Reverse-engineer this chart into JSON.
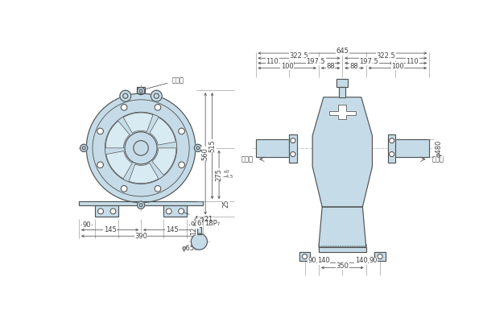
{
  "bg_color": "#ffffff",
  "line_color": "#505050",
  "dim_color": "#404040",
  "fill_color": "#c5dce8",
  "fill_color_light": "#d8eaf2",
  "font_size": 6,
  "lw_main": 0.8,
  "lw_dim": 0.5,
  "notes": {
    "terminal_label": "端子台",
    "output_shaft": "出力軸",
    "input_shaft": "入力軸"
  }
}
